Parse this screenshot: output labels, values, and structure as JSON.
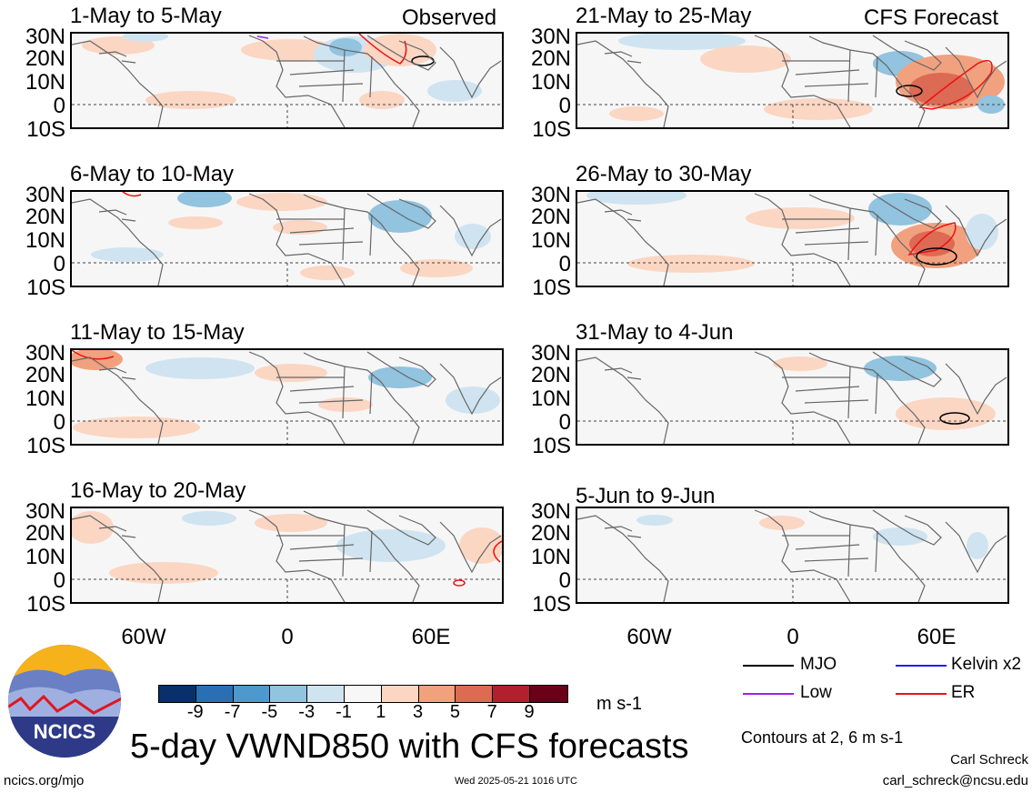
{
  "main_title": "5-day VWND850 with CFS forecasts",
  "section_labels": {
    "observed": "Observed",
    "forecast": "CFS Forecast"
  },
  "lat_labels": [
    "30N",
    "20N",
    "10N",
    "0",
    "10S"
  ],
  "lon_labels": [
    "60W",
    "0",
    "60E"
  ],
  "panels": [
    {
      "title": "1-May to 5-May",
      "column": "left",
      "row": 0
    },
    {
      "title": "6-May to 10-May",
      "column": "left",
      "row": 1
    },
    {
      "title": "11-May to 15-May",
      "column": "left",
      "row": 2
    },
    {
      "title": "16-May to 20-May",
      "column": "left",
      "row": 3
    },
    {
      "title": "21-May to 25-May",
      "column": "right",
      "row": 0
    },
    {
      "title": "26-May to 30-May",
      "column": "right",
      "row": 1
    },
    {
      "title": "31-May to 4-Jun",
      "column": "right",
      "row": 2
    },
    {
      "title": "5-Jun to 9-Jun",
      "column": "right",
      "row": 3
    }
  ],
  "colorbar": {
    "colors": [
      "#08306b",
      "#2a6fb5",
      "#4d98cd",
      "#92c3df",
      "#cfe4f0",
      "#f7f7f7",
      "#fbd6c3",
      "#f2a17f",
      "#dd6a54",
      "#b3202d",
      "#6b0019"
    ],
    "ticks": [
      "-9",
      "-7",
      "-5",
      "-3",
      "-1",
      "1",
      "3",
      "5",
      "7",
      "9"
    ],
    "units": "m s-1"
  },
  "legend": {
    "items": [
      {
        "label": "MJO",
        "color": "#000000"
      },
      {
        "label": "Kelvin x2",
        "color": "#1d1dff"
      },
      {
        "label": "Low",
        "color": "#a020f0"
      },
      {
        "label": "ER",
        "color": "#ee1111"
      }
    ],
    "contours_note": "Contours at 2, 6 m s-1"
  },
  "logo": {
    "text": "NCICS"
  },
  "footer": {
    "url": "ncics.org/mjo",
    "timestamp": "Wed 2025-05-21 1016 UTC",
    "author": "Carl Schreck",
    "email": "carl_schreck@ncsu.edu"
  }
}
